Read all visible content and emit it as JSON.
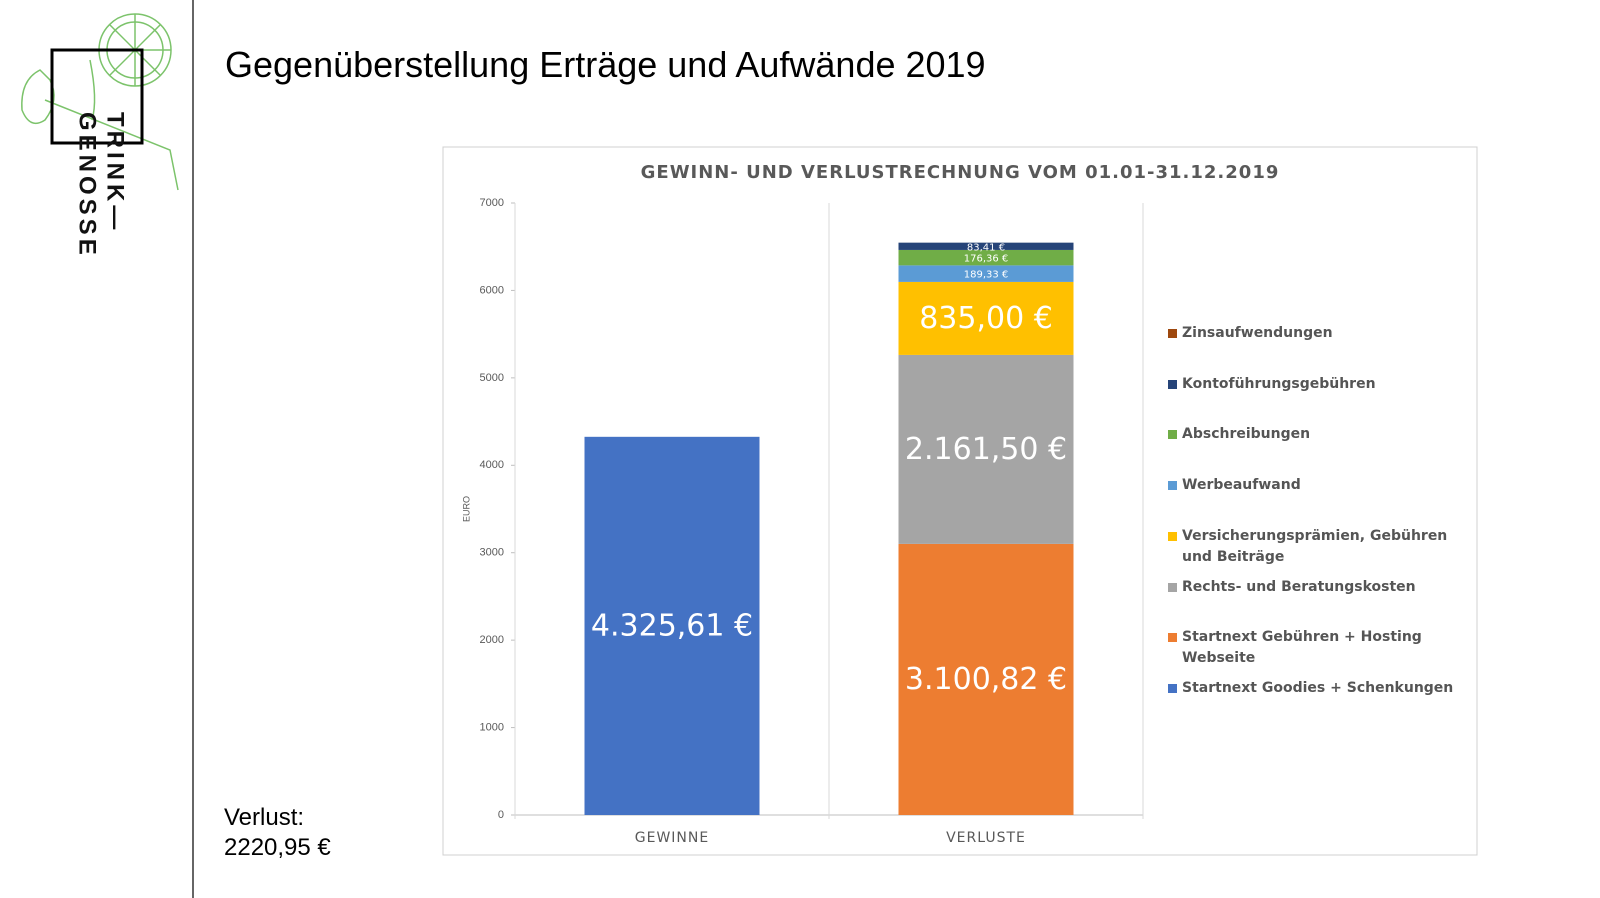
{
  "slide": {
    "title": "Gegenüberstellung Erträge und Aufwände 2019",
    "logo_top": "TRINK—",
    "logo_bottom": "GENOSSE",
    "note_label": "Verlust:",
    "note_value": "2220,95 €"
  },
  "chart_data": {
    "type": "stacked-bar",
    "title": "GEWINN- UND VERLUSTRECHNUNG VOM 01.01-31.12.2019",
    "y_label": "EURO",
    "categories": [
      "GEWINNE",
      "VERLUSTE"
    ],
    "ylim": [
      0,
      7000
    ],
    "yticks": [
      0,
      1000,
      2000,
      3000,
      4000,
      5000,
      6000,
      7000
    ],
    "series": [
      {
        "name": "Startnext Goodies + Schenkungen",
        "color": "#4472c4",
        "values": [
          4325.61,
          null
        ],
        "value_labels": [
          "4.325,61 €",
          null
        ]
      },
      {
        "name": "Startnext Gebühren + Hosting Webseite",
        "color": "#ed7d31",
        "values": [
          null,
          3100.82
        ],
        "value_labels": [
          null,
          "3.100,82 €"
        ]
      },
      {
        "name": "Rechts- und Beratungskosten",
        "color": "#a5a5a5",
        "values": [
          null,
          2161.5
        ],
        "value_labels": [
          null,
          "2.161,50 €"
        ]
      },
      {
        "name": "Versicherungsprämien, Gebühren und Beiträge",
        "color": "#ffc000",
        "values": [
          null,
          835
        ],
        "value_labels": [
          null,
          "835,00 €"
        ]
      },
      {
        "name": "Werbeaufwand",
        "color": "#5b9bd5",
        "values": [
          null,
          189.33
        ],
        "value_labels": [
          null,
          "189,33 €"
        ]
      },
      {
        "name": "Abschreibungen",
        "color": "#70ad47",
        "values": [
          null,
          176.36
        ],
        "value_labels": [
          null,
          "176,36 €"
        ]
      },
      {
        "name": "Kontoführungsgebühren",
        "color": "#264478",
        "values": [
          null,
          83.41
        ],
        "value_labels": [
          null,
          "83,41 €"
        ]
      },
      {
        "name": "Zinsaufwendungen",
        "color": "#9e480e",
        "values": [
          null,
          0.14
        ]
      }
    ]
  }
}
